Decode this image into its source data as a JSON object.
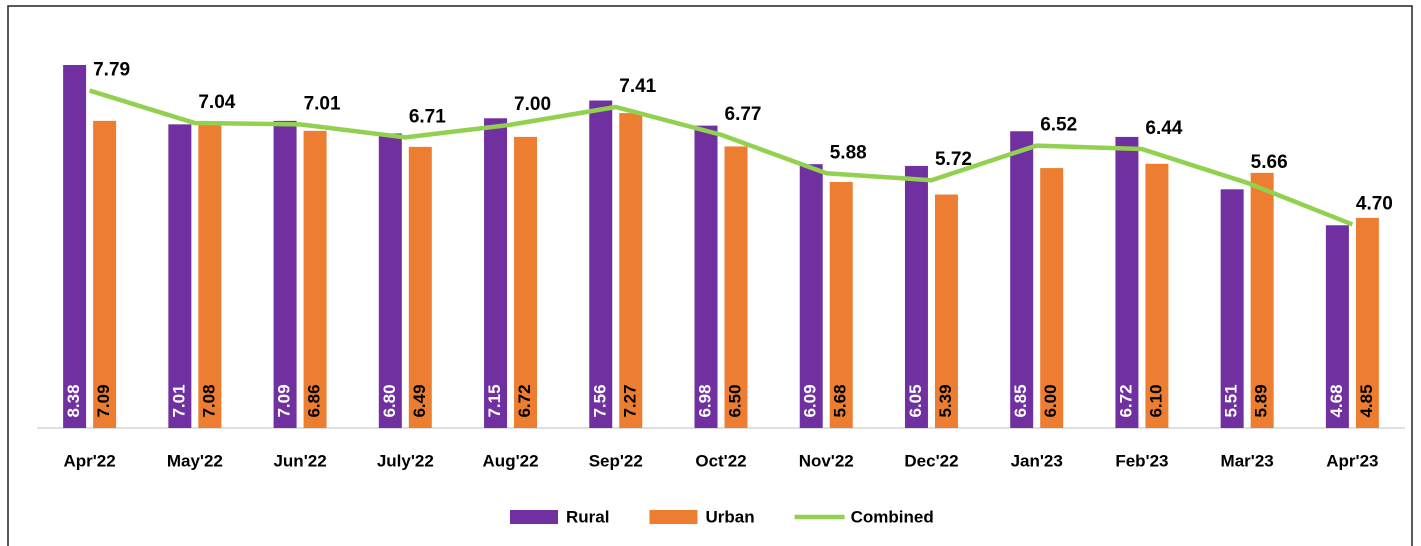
{
  "chart_data": {
    "type": "bar-line",
    "categories": [
      "Apr'22",
      "May'22",
      "Jun'22",
      "July'22",
      "Aug'22",
      "Sep'22",
      "Oct'22",
      "Nov'22",
      "Dec'22",
      "Jan'23",
      "Feb'23",
      "Mar'23",
      "Apr'23"
    ],
    "series": [
      {
        "name": "Rural",
        "type": "bar",
        "color": "#7030a0",
        "values": [
          8.38,
          7.01,
          7.09,
          6.8,
          7.15,
          7.56,
          6.98,
          6.09,
          6.05,
          6.85,
          6.72,
          5.51,
          4.68
        ],
        "value_labels": [
          "8.38",
          "7.01",
          "7.09",
          "6.80",
          "7.15",
          "7.56",
          "6.98",
          "6.09",
          "6.05",
          "6.85",
          "6.72",
          "5.51",
          "4.68"
        ]
      },
      {
        "name": "Urban",
        "type": "bar",
        "color": "#ed7d31",
        "values": [
          7.09,
          7.08,
          6.86,
          6.49,
          6.72,
          7.27,
          6.5,
          5.68,
          5.39,
          6,
          6.1,
          5.89,
          4.85
        ],
        "value_labels": [
          "7.09",
          "7.08",
          "6.86",
          "6.49",
          "6.72",
          "7.27",
          "6.50",
          "5.68",
          "5.39",
          "6.00",
          "6.10",
          "5.89",
          "4.85"
        ]
      },
      {
        "name": "Combined",
        "type": "line",
        "color": "#92d050",
        "values": [
          7.79,
          7.04,
          7.01,
          6.71,
          7,
          7.41,
          6.77,
          5.88,
          5.72,
          6.52,
          6.44,
          5.66,
          4.7
        ],
        "value_labels": [
          "7.79",
          "7.04",
          "7.01",
          "6.71",
          "7.00",
          "7.41",
          "6.77",
          "5.88",
          "5.72",
          "6.52",
          "6.44",
          "5.66",
          "4.70"
        ]
      }
    ],
    "legend": "bottom"
  }
}
